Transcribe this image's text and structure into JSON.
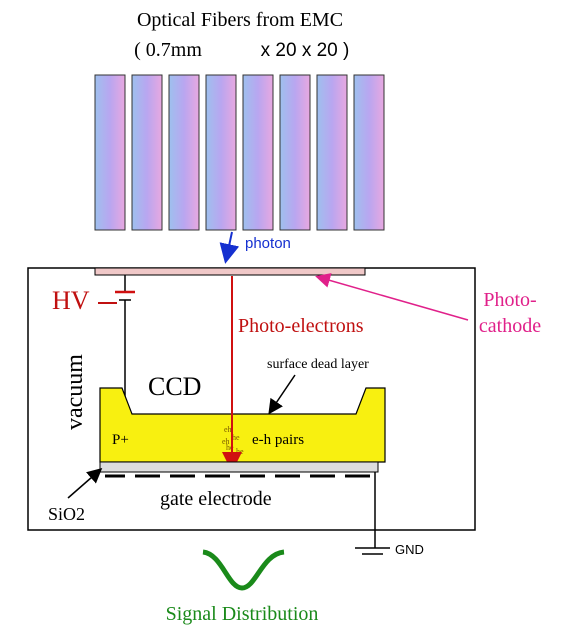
{
  "title": {
    "line1": "Optical Fibers from EMC",
    "line2a": "( 0.7mm",
    "line2b": "x 20 x 20 )"
  },
  "labels": {
    "photon": "photon",
    "hv": "HV",
    "photocathode1": "Photo-",
    "photocathode2": "cathode",
    "photoelectrons": "Photo-electrons",
    "dead_layer": "surface dead layer",
    "vacuum": "vacuum",
    "ccd": "CCD",
    "p_plus": "P+",
    "eh_pairs": "e-h pairs",
    "sio2": "SiO2",
    "gate": "gate electrode",
    "gnd": "GND",
    "signal": "Signal Distribution"
  }
}
